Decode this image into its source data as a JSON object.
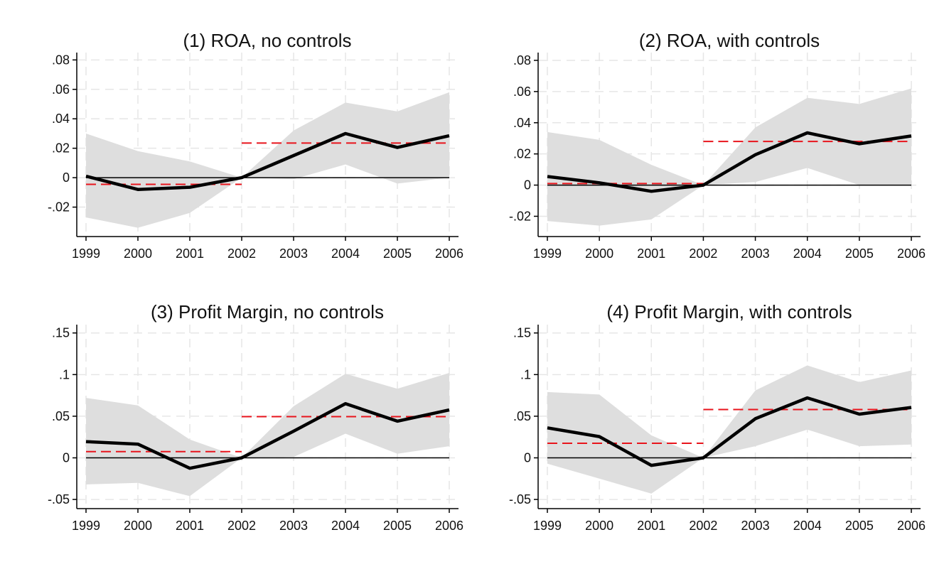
{
  "chart_data": [
    {
      "type": "line",
      "title": "(1) ROA, no controls",
      "x": [
        "1999",
        "2000",
        "2001",
        "2002",
        "2003",
        "2004",
        "2005",
        "2006"
      ],
      "ylim": [
        -0.04,
        0.085
      ],
      "y_ticks": [
        ".08",
        ".06",
        ".04",
        ".02",
        "0",
        "-.02"
      ],
      "y_tick_values": [
        0.08,
        0.06,
        0.04,
        0.02,
        0,
        -0.02
      ],
      "grid": true,
      "estimate": [
        0.001,
        -0.008,
        -0.0065,
        0.0,
        0.015,
        0.03,
        0.0205,
        0.0285
      ],
      "ci_upper": [
        0.03,
        0.018,
        0.011,
        0.0,
        0.032,
        0.051,
        0.045,
        0.058
      ],
      "ci_lower": [
        -0.027,
        -0.034,
        -0.024,
        0.0,
        -0.001,
        0.009,
        -0.004,
        0.0
      ],
      "pre_mean": -0.0045,
      "post_mean": 0.0235
    },
    {
      "type": "line",
      "title": "(2) ROA, with controls",
      "x": [
        "1999",
        "2000",
        "2001",
        "2002",
        "2003",
        "2004",
        "2005",
        "2006"
      ],
      "ylim": [
        -0.033,
        0.085
      ],
      "y_ticks": [
        ".08",
        ".06",
        ".04",
        ".02",
        "0",
        "-.02"
      ],
      "y_tick_values": [
        0.08,
        0.06,
        0.04,
        0.02,
        0,
        -0.02
      ],
      "grid": true,
      "estimate": [
        0.0055,
        0.0015,
        -0.004,
        0.0,
        0.0195,
        0.0335,
        0.0265,
        0.0315
      ],
      "ci_upper": [
        0.034,
        0.029,
        0.013,
        0.0,
        0.037,
        0.056,
        0.052,
        0.062
      ],
      "ci_lower": [
        -0.023,
        -0.026,
        -0.022,
        0.0,
        0.002,
        0.011,
        0.0,
        0.0
      ],
      "pre_mean": 0.001,
      "post_mean": 0.028
    },
    {
      "type": "line",
      "title": "(3) Profit Margin, no controls",
      "x": [
        "1999",
        "2000",
        "2001",
        "2002",
        "2003",
        "2004",
        "2005",
        "2006"
      ],
      "ylim": [
        -0.061,
        0.16
      ],
      "y_ticks": [
        ".15",
        ".1",
        ".05",
        "0",
        "-.05"
      ],
      "y_tick_values": [
        0.15,
        0.1,
        0.05,
        0,
        -0.05
      ],
      "grid": true,
      "estimate": [
        0.0195,
        0.0165,
        -0.0125,
        0.0,
        0.032,
        0.065,
        0.044,
        0.0575
      ],
      "ci_upper": [
        0.072,
        0.063,
        0.022,
        0.0,
        0.062,
        0.101,
        0.083,
        0.102
      ],
      "ci_lower": [
        -0.032,
        -0.03,
        -0.046,
        0.0,
        0.001,
        0.029,
        0.005,
        0.014
      ],
      "pre_mean": 0.0075,
      "post_mean": 0.0495
    },
    {
      "type": "line",
      "title": "(4) Profit Margin, with controls",
      "x": [
        "1999",
        "2000",
        "2001",
        "2002",
        "2003",
        "2004",
        "2005",
        "2006"
      ],
      "ylim": [
        -0.061,
        0.16
      ],
      "y_ticks": [
        ".15",
        ".1",
        ".05",
        "0",
        "-.05"
      ],
      "y_tick_values": [
        0.15,
        0.1,
        0.05,
        0,
        -0.05
      ],
      "grid": true,
      "estimate": [
        0.036,
        0.0255,
        -0.009,
        0.0,
        0.047,
        0.072,
        0.0525,
        0.0605
      ],
      "ci_upper": [
        0.079,
        0.076,
        0.027,
        0.0,
        0.081,
        0.111,
        0.091,
        0.105
      ],
      "ci_lower": [
        -0.007,
        -0.025,
        -0.043,
        0.0,
        0.014,
        0.034,
        0.014,
        0.016
      ],
      "pre_mean": 0.0175,
      "post_mean": 0.058
    }
  ],
  "colors": {
    "estimate": "#000000",
    "ci_band": "#dedede",
    "mean_line": "#e8141c",
    "grid": "#e6e6e6",
    "zero_line": "#000000"
  }
}
